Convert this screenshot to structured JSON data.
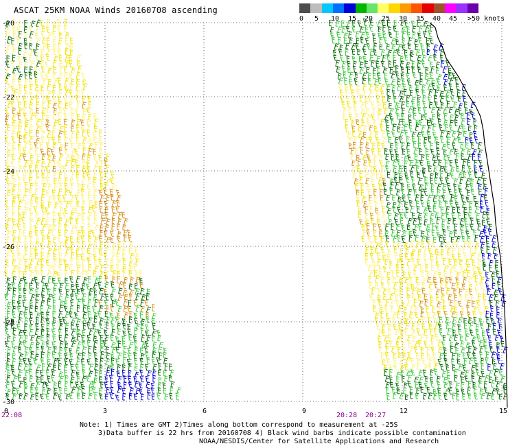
{
  "title": "ASCAT 25KM NOAA Winds 20160708 ascending",
  "legend": {
    "colors": [
      "#4d4d4d",
      "#bdbdbd",
      "#00c8ff",
      "#0070ff",
      "#0000d8",
      "#00b400",
      "#66e666",
      "#ffff66",
      "#ffd700",
      "#ff9900",
      "#ff5500",
      "#e60000",
      "#a0522d",
      "#ff00ff",
      "#9b30ff",
      "#6a00a8"
    ],
    "labels": [
      "0",
      "5",
      "10",
      "15",
      "20",
      "25",
      "30",
      "35",
      "40",
      "45",
      ">50 knots"
    ]
  },
  "axes": {
    "y_labels": [
      "-20",
      "-22",
      "-24",
      "-26",
      "-28",
      "-30"
    ],
    "x_labels": [
      "0",
      "3",
      "6",
      "9",
      "12",
      "15"
    ]
  },
  "times": [
    "22:08",
    "20:28",
    "20:27"
  ],
  "notes": [
    "Note: 1) Times are GMT 2)Times along bottom correspond to measurement at -25S",
    "3)Data buffer is 22 hrs from 20160708 4) Black wind barbs indicate possible contamination",
    "NOAA/NESDIS/Center for Satellite Applications and Research"
  ],
  "swath_colors": {
    "yellow": "#f2e200",
    "pale_yellow": "#fff07a",
    "orange": "#d4901a",
    "light_green": "#38c838",
    "dark_green": "#006400",
    "blue": "#0000cc",
    "coast": "#000000"
  }
}
